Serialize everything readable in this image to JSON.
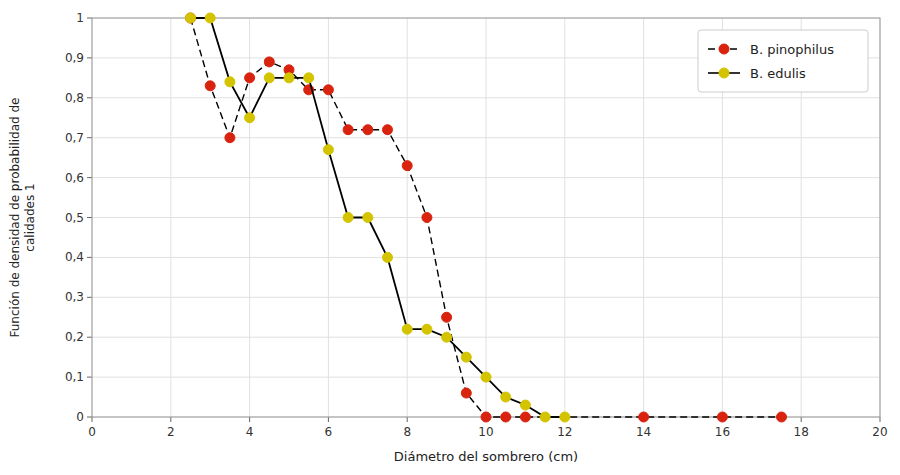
{
  "chart_data": {
    "type": "line",
    "xlabel": "Diámetro del sombrero (cm)",
    "ylabel": "Función de densidad de probabilidad de\ncalidades 1",
    "xlim": [
      0,
      20
    ],
    "ylim": [
      0,
      1.0
    ],
    "xticks": [
      0,
      2,
      4,
      6,
      8,
      10,
      12,
      14,
      16,
      18,
      20
    ],
    "yticks": [
      0,
      {
        "value": 0.1,
        "label": "0,1"
      },
      {
        "value": 0.2,
        "label": "0,2"
      },
      {
        "value": 0.3,
        "label": "0,3"
      },
      {
        "value": 0.4,
        "label": "0,4"
      },
      {
        "value": 0.5,
        "label": "0,5"
      },
      {
        "value": 0.6,
        "label": "0,6"
      },
      {
        "value": 0.7,
        "label": "0,7"
      },
      {
        "value": 0.8,
        "label": "0,8"
      },
      {
        "value": 0.9,
        "label": "0,9"
      },
      1
    ],
    "grid": true,
    "legend": "upper right",
    "series": [
      {
        "name": "B. pinophilus",
        "color": "#d9230f",
        "marker": "circle",
        "line_style": "dashed",
        "x": [
          2.5,
          3.0,
          3.5,
          4.0,
          4.5,
          5.0,
          5.5,
          6.0,
          6.5,
          7.0,
          7.5,
          8.0,
          8.5,
          9.0,
          9.5,
          10.0,
          10.5,
          11.0,
          14.0,
          16.0,
          17.5
        ],
        "values": [
          1.0,
          0.83,
          0.7,
          0.85,
          0.89,
          0.87,
          0.82,
          0.82,
          0.72,
          0.72,
          0.72,
          0.63,
          0.5,
          0.25,
          0.06,
          0.0,
          0.0,
          0.0,
          0.0,
          0.0,
          0.0
        ]
      },
      {
        "name": "B. edulis",
        "color": "#d4c400",
        "marker": "circle",
        "line_style": "solid",
        "x": [
          2.5,
          3.0,
          3.5,
          4.0,
          4.5,
          5.0,
          5.5,
          6.0,
          6.5,
          7.0,
          7.5,
          8.0,
          8.5,
          9.0,
          9.5,
          10.0,
          10.5,
          11.0,
          11.5,
          12.0
        ],
        "values": [
          1.0,
          1.0,
          0.84,
          0.75,
          0.85,
          0.85,
          0.85,
          0.67,
          0.5,
          0.5,
          0.4,
          0.22,
          0.22,
          0.2,
          0.15,
          0.1,
          0.05,
          0.03,
          0.0,
          0.0
        ]
      }
    ]
  }
}
